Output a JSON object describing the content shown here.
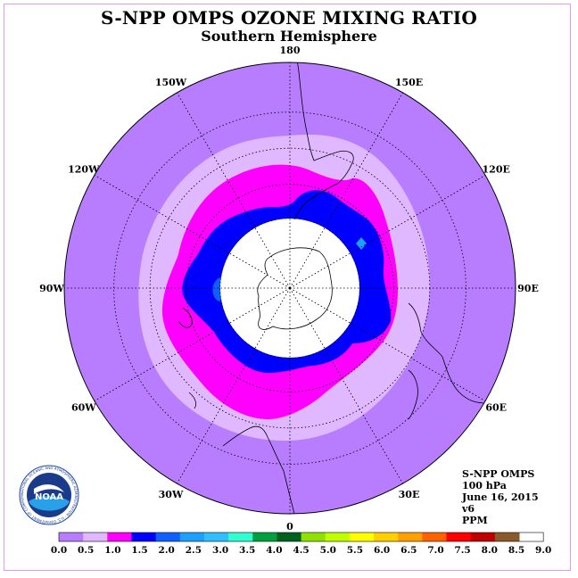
{
  "title": "S-NPP OMPS OZONE MIXING RATIO",
  "subtitle": "Southern Hemisphere",
  "longitude_labels": [
    {
      "text": "90W",
      "lon": -90
    },
    {
      "text": "60W",
      "lon": -60
    },
    {
      "text": "30W",
      "lon": -30
    },
    {
      "text": "0",
      "lon": 0
    },
    {
      "text": "30E",
      "lon": 30
    },
    {
      "text": "60E",
      "lon": 60
    },
    {
      "text": "90E",
      "lon": 90
    },
    {
      "text": "120E",
      "lon": 120
    },
    {
      "text": "150E",
      "lon": 150
    },
    {
      "text": "180",
      "lon": 180
    },
    {
      "text": "150W",
      "lon": -150
    },
    {
      "text": "120W",
      "lon": -120
    }
  ],
  "info": {
    "product": "S-NPP OMPS",
    "level": "100 hPa",
    "date": "June 16, 2015",
    "version": "v6",
    "units": "PPM"
  },
  "logo": {
    "text": "NOAA",
    "ring_text": "NATIONAL OCEANIC AND ATMOSPHERIC ADMINISTRATION · U.S. DEPARTMENT OF COMMERCE"
  },
  "colorbar": {
    "labels": [
      "0.0",
      "0.5",
      "1.0",
      "1.5",
      "2.0",
      "2.5",
      "3.0",
      "3.5",
      "4.0",
      "4.5",
      "5.0",
      "5.5",
      "6.0",
      "6.5",
      "7.0",
      "7.5",
      "8.0",
      "8.5",
      "9.0"
    ],
    "colors": [
      "#b87cff",
      "#e0b8ff",
      "#ff00ff",
      "#0000ff",
      "#1060ff",
      "#1ea0ff",
      "#30c0ff",
      "#30ffd0",
      "#00a040",
      "#006020",
      "#90e000",
      "#c0ff00",
      "#ffff00",
      "#ffd000",
      "#ffa000",
      "#ff6000",
      "#ff0000",
      "#c00000",
      "#8b5a2b"
    ]
  },
  "map_colors": {
    "background": "#b87cff",
    "band_0_5": "#e0b8ff",
    "band_1_0": "#ff00ff",
    "band_1_5": "#0000ff",
    "band_2_0": "#1060ff",
    "band_2_5": "#1ea0ff",
    "mask": "#ffffff"
  }
}
